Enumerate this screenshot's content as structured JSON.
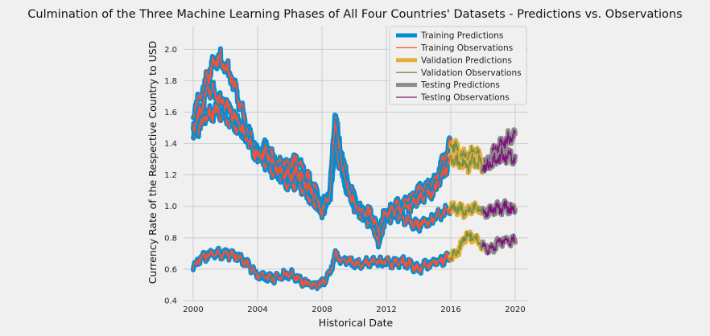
{
  "chart_data": {
    "type": "line",
    "title": "Culmination of the Three Machine Learning Phases of All Four Countries' Datasets - Predictions vs. Observations",
    "xlabel": "Historical Date",
    "ylabel": "Currency Rate of the Respective Country to USD",
    "xlim": [
      1999.4,
      2020.8
    ],
    "ylim": [
      0.4,
      2.15
    ],
    "xticks": [
      "2000",
      "2004",
      "2008",
      "2012",
      "2016",
      "2020"
    ],
    "xtick_values": [
      2000,
      2004,
      2008,
      2012,
      2016,
      2020
    ],
    "yticks": [
      "0.4",
      "0.6",
      "0.8",
      "1.0",
      "1.2",
      "1.4",
      "1.6",
      "1.8",
      "2.0"
    ],
    "ytick_values": [
      0.4,
      0.6,
      0.8,
      1.0,
      1.2,
      1.4,
      1.6,
      1.8,
      2.0
    ],
    "grid": true,
    "legend_position": "top-right",
    "legend": [
      {
        "label": "Training Predictions",
        "color": "#008fd5",
        "style": "thick"
      },
      {
        "label": "Training Observations",
        "color": "#fc4f30",
        "style": "thin"
      },
      {
        "label": "Validation Predictions",
        "color": "#e5ae38",
        "style": "thick"
      },
      {
        "label": "Validation Observations",
        "color": "#6d904f",
        "style": "thin"
      },
      {
        "label": "Testing Predictions",
        "color": "#8b8b8b",
        "style": "thick"
      },
      {
        "label": "Testing Observations",
        "color": "#810f7c",
        "style": "thin"
      }
    ],
    "phases": {
      "training": [
        2000.0,
        2016.0
      ],
      "validation": [
        2016.0,
        2018.0
      ],
      "testing": [
        2018.0,
        2020.0
      ]
    },
    "series": [
      {
        "x": [
          2000.0,
          2000.5,
          2001.0,
          2001.5,
          2002.0,
          2002.5,
          2003.0,
          2003.5,
          2004.0,
          2004.5,
          2005.0,
          2005.5,
          2006.0,
          2006.5,
          2007.0,
          2007.5,
          2008.0,
          2008.5,
          2008.8,
          2009.0,
          2009.5,
          2010.0,
          2010.5,
          2011.0,
          2011.5,
          2012.0,
          2012.5,
          2013.0,
          2013.5,
          2014.0,
          2014.5,
          2015.0,
          2015.5,
          2016.0,
          2016.5,
          2017.0,
          2017.5,
          2018.0,
          2018.5,
          2019.0,
          2019.5,
          2020.0
        ],
        "values": [
          1.6,
          1.72,
          1.85,
          1.95,
          1.9,
          1.78,
          1.62,
          1.45,
          1.35,
          1.38,
          1.3,
          1.28,
          1.26,
          1.3,
          1.2,
          1.12,
          1.0,
          1.08,
          1.62,
          1.45,
          1.2,
          1.05,
          0.95,
          0.92,
          0.78,
          0.95,
          1.0,
          1.02,
          1.05,
          1.1,
          1.12,
          1.15,
          1.28,
          1.4,
          1.35,
          1.3,
          1.36,
          1.25,
          1.32,
          1.38,
          1.42,
          1.46
        ]
      },
      {
        "x": [
          2000.0,
          2000.5,
          2001.0,
          2001.5,
          2002.0,
          2002.5,
          2003.0,
          2003.5,
          2004.0,
          2004.5,
          2005.0,
          2005.5,
          2006.0,
          2006.5,
          2007.0,
          2007.5,
          2008.0,
          2008.5,
          2008.8,
          2009.0,
          2009.5,
          2010.0,
          2010.5,
          2011.0,
          2011.5,
          2012.0,
          2012.5,
          2013.0,
          2013.5,
          2014.0,
          2014.5,
          2015.0,
          2015.5,
          2016.0,
          2016.5,
          2017.0,
          2017.5,
          2018.0,
          2018.5,
          2019.0,
          2019.5,
          2020.0
        ],
        "values": [
          1.45,
          1.52,
          1.58,
          1.62,
          1.58,
          1.52,
          1.48,
          1.42,
          1.32,
          1.28,
          1.22,
          1.18,
          1.14,
          1.16,
          1.08,
          1.02,
          0.98,
          1.05,
          1.38,
          1.3,
          1.12,
          1.0,
          0.93,
          0.9,
          0.8,
          0.92,
          0.95,
          0.93,
          0.9,
          0.88,
          0.9,
          0.92,
          0.96,
          1.0,
          0.98,
          0.97,
          1.0,
          0.96,
          0.97,
          0.99,
          0.99,
          0.98
        ]
      },
      {
        "x": [
          2000.0,
          2000.5,
          2001.0,
          2001.5,
          2002.0,
          2002.5,
          2003.0,
          2003.5,
          2004.0,
          2004.5,
          2005.0,
          2005.5,
          2006.0,
          2006.5,
          2007.0,
          2007.5,
          2008.0,
          2008.5,
          2008.8,
          2009.0,
          2009.5,
          2010.0,
          2010.5,
          2011.0,
          2011.5,
          2012.0,
          2012.5,
          2013.0,
          2013.5,
          2014.0,
          2014.5,
          2015.0,
          2015.5,
          2016.0,
          2016.5,
          2017.0,
          2017.5,
          2018.0,
          2018.5,
          2019.0,
          2019.5,
          2020.0
        ],
        "values": [
          1.5,
          1.62,
          1.75,
          1.7,
          1.65,
          1.58,
          1.5,
          1.4,
          1.32,
          1.35,
          1.26,
          1.22,
          1.2,
          1.22,
          1.14,
          1.08,
          0.96,
          1.1,
          1.55,
          1.4,
          1.15,
          1.02,
          0.96,
          0.96,
          0.85,
          0.98,
          0.97,
          0.98,
          1.0,
          1.05,
          1.08,
          1.1,
          1.2,
          1.3,
          1.28,
          1.26,
          1.3,
          1.24,
          1.28,
          1.31,
          1.32,
          1.32
        ]
      },
      {
        "x": [
          2000.0,
          2000.5,
          2001.0,
          2001.5,
          2002.0,
          2002.5,
          2003.0,
          2003.5,
          2004.0,
          2004.5,
          2005.0,
          2005.5,
          2006.0,
          2006.5,
          2007.0,
          2007.5,
          2008.0,
          2008.5,
          2008.8,
          2009.0,
          2009.5,
          2010.0,
          2010.5,
          2011.0,
          2011.5,
          2012.0,
          2012.5,
          2013.0,
          2013.5,
          2014.0,
          2014.5,
          2015.0,
          2015.5,
          2016.0,
          2016.5,
          2017.0,
          2017.5,
          2018.0,
          2018.5,
          2019.0,
          2019.5,
          2020.0
        ],
        "values": [
          0.61,
          0.67,
          0.69,
          0.7,
          0.7,
          0.69,
          0.66,
          0.62,
          0.56,
          0.55,
          0.54,
          0.56,
          0.57,
          0.54,
          0.51,
          0.5,
          0.51,
          0.58,
          0.7,
          0.67,
          0.66,
          0.63,
          0.64,
          0.64,
          0.65,
          0.64,
          0.64,
          0.65,
          0.63,
          0.6,
          0.63,
          0.65,
          0.66,
          0.68,
          0.72,
          0.82,
          0.8,
          0.74,
          0.72,
          0.78,
          0.79,
          0.77
        ]
      }
    ]
  }
}
